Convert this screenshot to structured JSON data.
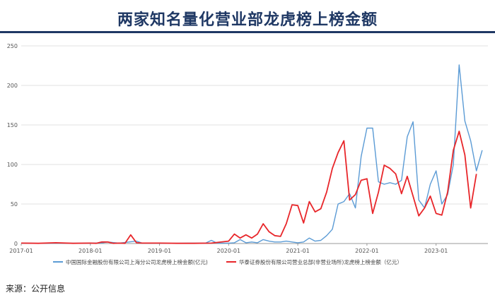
{
  "title": "两家知名量化营业部龙虎榜上榜金额",
  "source": "来源：公开信息",
  "chart_data": {
    "type": "line",
    "ylim": [
      0,
      250
    ],
    "yticks": [
      0,
      50,
      100,
      150,
      200,
      250
    ],
    "xlim": [
      "2017-01",
      "2023-10"
    ],
    "xticks": [
      "2017-01",
      "2018-01",
      "2019-01",
      "2020-01",
      "2021-01",
      "2022-01",
      "2023-01"
    ],
    "grid": true,
    "legend_position": "bottom",
    "series": [
      {
        "name": "中国国际金融股份有限公司上海分公司龙虎榜上榜金额(亿元)",
        "color": "#5b9bd5",
        "points": [
          [
            "2017-01",
            0.5
          ],
          [
            "2017-04",
            0.3
          ],
          [
            "2017-07",
            0.5
          ],
          [
            "2017-10",
            0.4
          ],
          [
            "2018-01",
            0.5
          ],
          [
            "2018-03",
            0.8
          ],
          [
            "2018-04",
            2
          ],
          [
            "2018-06",
            0.5
          ],
          [
            "2018-09",
            3
          ],
          [
            "2018-10",
            0.5
          ],
          [
            "2018-12",
            0.5
          ],
          [
            "2019-03",
            0.3
          ],
          [
            "2019-06",
            0.5
          ],
          [
            "2019-09",
            0.5
          ],
          [
            "2019-10",
            4
          ],
          [
            "2019-11",
            0.5
          ],
          [
            "2020-01",
            0.5
          ],
          [
            "2020-02",
            1
          ],
          [
            "2020-03",
            5
          ],
          [
            "2020-04",
            1
          ],
          [
            "2020-05",
            2
          ],
          [
            "2020-06",
            1
          ],
          [
            "2020-07",
            5
          ],
          [
            "2020-08",
            3
          ],
          [
            "2020-09",
            2
          ],
          [
            "2020-10",
            2
          ],
          [
            "2020-11",
            3
          ],
          [
            "2020-12",
            2
          ],
          [
            "2021-01",
            1
          ],
          [
            "2021-02",
            2
          ],
          [
            "2021-03",
            7
          ],
          [
            "2021-04",
            3
          ],
          [
            "2021-05",
            4
          ],
          [
            "2021-06",
            10
          ],
          [
            "2021-07",
            18
          ],
          [
            "2021-08",
            50
          ],
          [
            "2021-09",
            53
          ],
          [
            "2021-10",
            63
          ],
          [
            "2021-11",
            45
          ],
          [
            "2021-12",
            110
          ],
          [
            "2022-01",
            146
          ],
          [
            "2022-02",
            146
          ],
          [
            "2022-03",
            78
          ],
          [
            "2022-04",
            75
          ],
          [
            "2022-05",
            77
          ],
          [
            "2022-06",
            75
          ],
          [
            "2022-07",
            80
          ],
          [
            "2022-08",
            135
          ],
          [
            "2022-09",
            154
          ],
          [
            "2022-10",
            55
          ],
          [
            "2022-11",
            45
          ],
          [
            "2022-12",
            75
          ],
          [
            "2023-01",
            92
          ],
          [
            "2023-02",
            50
          ],
          [
            "2023-03",
            62
          ],
          [
            "2023-04",
            100
          ],
          [
            "2023-05",
            226
          ],
          [
            "2023-06",
            155
          ],
          [
            "2023-07",
            130
          ],
          [
            "2023-08",
            92
          ],
          [
            "2023-09",
            118
          ]
        ]
      },
      {
        "name": "华泰证券股份有限公司营业总部(非营业场所)龙虎榜上榜金额（亿元）",
        "color": "#e8262a",
        "points": [
          [
            "2017-01",
            0.5
          ],
          [
            "2017-04",
            0.3
          ],
          [
            "2017-07",
            1
          ],
          [
            "2017-10",
            0.3
          ],
          [
            "2018-01",
            0.5
          ],
          [
            "2018-02",
            0.3
          ],
          [
            "2018-03",
            2
          ],
          [
            "2018-04",
            2
          ],
          [
            "2018-05",
            0.3
          ],
          [
            "2018-06",
            0.5
          ],
          [
            "2018-07",
            0.3
          ],
          [
            "2018-08",
            11
          ],
          [
            "2018-09",
            1
          ],
          [
            "2018-10",
            0.5
          ],
          [
            "2019-01",
            0.5
          ],
          [
            "2019-04",
            0.3
          ],
          [
            "2019-07",
            0.3
          ],
          [
            "2019-10",
            0.5
          ],
          [
            "2020-01",
            3
          ],
          [
            "2020-02",
            12
          ],
          [
            "2020-03",
            7
          ],
          [
            "2020-04",
            11
          ],
          [
            "2020-05",
            7
          ],
          [
            "2020-06",
            12
          ],
          [
            "2020-07",
            25
          ],
          [
            "2020-08",
            15
          ],
          [
            "2020-09",
            10
          ],
          [
            "2020-10",
            9
          ],
          [
            "2020-11",
            25
          ],
          [
            "2020-12",
            49
          ],
          [
            "2021-01",
            48
          ],
          [
            "2021-02",
            26
          ],
          [
            "2021-03",
            53
          ],
          [
            "2021-04",
            40
          ],
          [
            "2021-05",
            44
          ],
          [
            "2021-06",
            65
          ],
          [
            "2021-07",
            95
          ],
          [
            "2021-08",
            115
          ],
          [
            "2021-09",
            130
          ],
          [
            "2021-10",
            55
          ],
          [
            "2021-11",
            62
          ],
          [
            "2021-12",
            80
          ],
          [
            "2022-01",
            82
          ],
          [
            "2022-02",
            38
          ],
          [
            "2022-03",
            65
          ],
          [
            "2022-04",
            99
          ],
          [
            "2022-05",
            95
          ],
          [
            "2022-06",
            88
          ],
          [
            "2022-07",
            63
          ],
          [
            "2022-08",
            85
          ],
          [
            "2022-09",
            60
          ],
          [
            "2022-10",
            35
          ],
          [
            "2022-11",
            45
          ],
          [
            "2022-12",
            60
          ],
          [
            "2023-01",
            38
          ],
          [
            "2023-02",
            36
          ],
          [
            "2023-03",
            65
          ],
          [
            "2023-04",
            118
          ],
          [
            "2023-05",
            142
          ],
          [
            "2023-06",
            112
          ],
          [
            "2023-07",
            45
          ],
          [
            "2023-08",
            88
          ]
        ]
      }
    ]
  }
}
